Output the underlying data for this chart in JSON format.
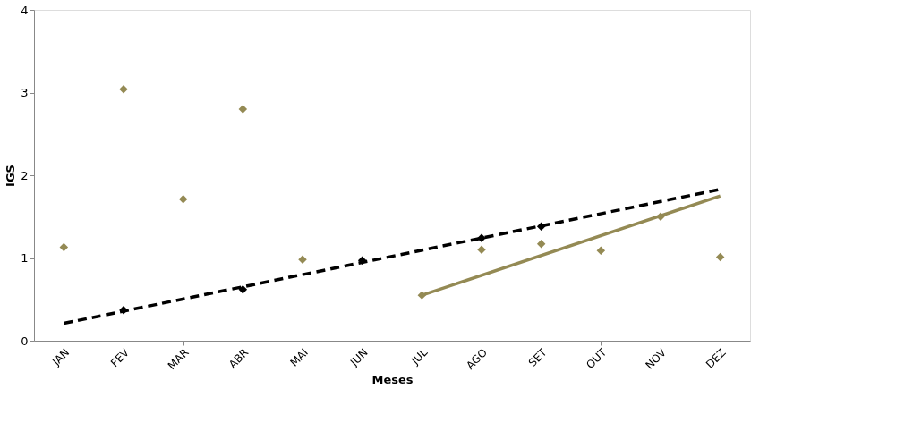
{
  "chart_data": {
    "type": "scatter",
    "xlabel": "Meses",
    "ylabel": "IGS",
    "categories": [
      "JAN",
      "FEV",
      "MAR",
      "ABR",
      "MAI",
      "JUN",
      "JUL",
      "AGO",
      "SET",
      "OUT",
      "NOV",
      "DEZ"
    ],
    "ylim": [
      0,
      4
    ],
    "yticks": [
      0,
      1,
      2,
      3,
      4
    ],
    "grid": false,
    "legend": false,
    "series": [
      {
        "color": "#948a54",
        "marker": "diamond",
        "values": [
          1.13,
          3.04,
          1.71,
          2.8,
          0.98,
          null,
          0.55,
          1.1,
          1.17,
          1.09,
          1.5,
          1.01
        ]
      },
      {
        "color": "#000000",
        "marker": "diamond",
        "values": [
          null,
          0.37,
          null,
          0.62,
          null,
          0.97,
          null,
          1.24,
          1.38,
          null,
          null,
          null
        ]
      },
      {
        "type": "line",
        "color": "#000000",
        "line_style": "dashed",
        "x": [
          "JAN",
          "DEZ"
        ],
        "values": [
          0.21,
          1.83
        ]
      },
      {
        "type": "line",
        "color": "#948a54",
        "line_style": "solid",
        "x": [
          "JUL",
          "DEZ"
        ],
        "values": [
          0.55,
          1.75
        ]
      }
    ]
  }
}
